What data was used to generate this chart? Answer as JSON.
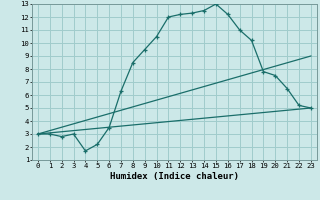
{
  "xlabel": "Humidex (Indice chaleur)",
  "xlim": [
    -0.5,
    23.5
  ],
  "ylim": [
    1,
    13
  ],
  "bg_color": "#cce8e8",
  "grid_color": "#a0cccc",
  "line_color": "#1a6e6a",
  "line1_x": [
    0,
    1,
    2,
    3,
    4,
    5,
    6,
    7,
    8,
    9,
    10,
    11,
    12,
    13,
    14,
    15,
    16,
    17,
    18,
    19,
    20,
    21,
    22,
    23
  ],
  "line1_y": [
    3.0,
    3.0,
    2.8,
    3.0,
    1.7,
    2.2,
    3.5,
    6.3,
    8.5,
    9.5,
    10.5,
    12.0,
    12.2,
    12.3,
    12.5,
    13.0,
    12.2,
    11.0,
    10.2,
    7.8,
    7.5,
    6.5,
    5.2,
    5.0
  ],
  "line2_x": [
    0,
    23
  ],
  "line2_y": [
    3.0,
    9.0
  ],
  "line3_x": [
    0,
    23
  ],
  "line3_y": [
    3.0,
    5.0
  ],
  "xticks": [
    0,
    1,
    2,
    3,
    4,
    5,
    6,
    7,
    8,
    9,
    10,
    11,
    12,
    13,
    14,
    15,
    16,
    17,
    18,
    19,
    20,
    21,
    22,
    23
  ],
  "yticks": [
    1,
    2,
    3,
    4,
    5,
    6,
    7,
    8,
    9,
    10,
    11,
    12,
    13
  ],
  "xlabel_fontsize": 6.5,
  "tick_fontsize": 5.2
}
